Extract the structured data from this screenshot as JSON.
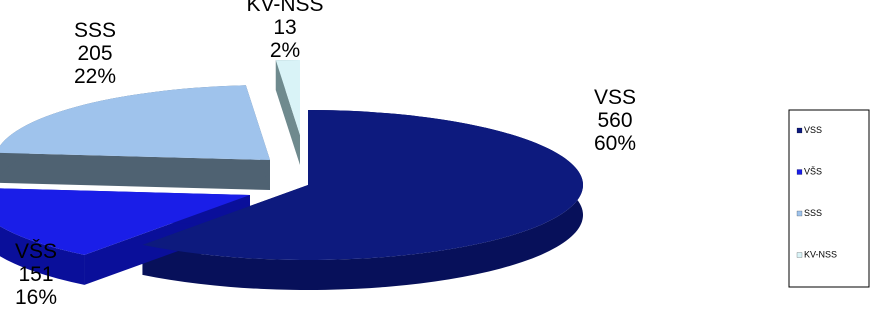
{
  "chart_data": {
    "type": "pie",
    "style": "3d-exploded",
    "title": "",
    "slices": [
      {
        "label": "VSS",
        "value": 560,
        "percent": "60%",
        "color": "#0d1a7e",
        "side": "#07105a"
      },
      {
        "label": "VŠS",
        "value": 151,
        "percent": "16%",
        "color": "#1a1ee8",
        "side": "#0a0f9a"
      },
      {
        "label": "SSS",
        "value": 205,
        "percent": "22%",
        "color": "#9fc3ec",
        "side": "#4f6272"
      },
      {
        "label": "KV-NSS",
        "value": 13,
        "percent": "2%",
        "color": "#d9f3f7",
        "side": "#6f8a8e"
      }
    ],
    "legend": {
      "position": "right",
      "entries": [
        "VSS",
        "VŠS",
        "SSS",
        "KV-NSS"
      ]
    }
  }
}
